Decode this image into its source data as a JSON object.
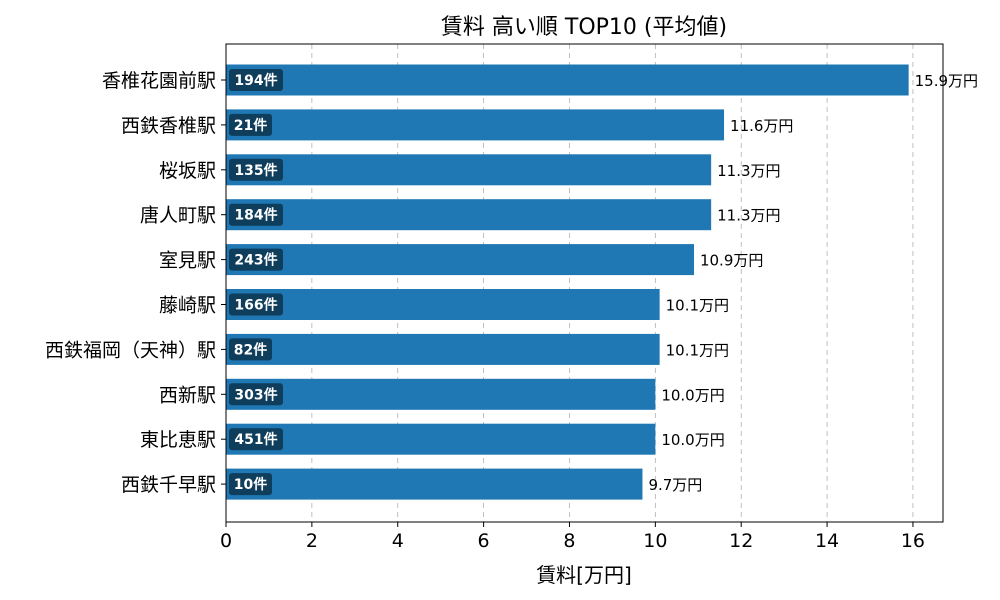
{
  "chart_data": {
    "type": "bar",
    "orientation": "horizontal",
    "title": "賃料 高い順 TOP10 (平均値)",
    "xlabel": "賃料[万円]",
    "ylabel": "",
    "xlim": [
      0,
      16.7
    ],
    "xticks": [
      "0",
      "2",
      "4",
      "6",
      "8",
      "10",
      "12",
      "14",
      "16"
    ],
    "grid": "x-dashed",
    "bar_color": "#1f77b4",
    "badge_color": "#0f3d5c",
    "categories": [
      "香椎花園前駅",
      "西鉄香椎駅",
      "桜坂駅",
      "唐人町駅",
      "室見駅",
      "藤崎駅",
      "西鉄福岡（天神）駅",
      "西新駅",
      "東比恵駅",
      "西鉄千早駅"
    ],
    "values": [
      15.9,
      11.6,
      11.3,
      11.3,
      10.9,
      10.1,
      10.1,
      10.0,
      10.0,
      9.7
    ],
    "value_labels": [
      "15.9万円",
      "11.6万円",
      "11.3万円",
      "11.3万円",
      "10.9万円",
      "10.1万円",
      "10.1万円",
      "10.0万円",
      "10.0万円",
      "9.7万円"
    ],
    "counts": [
      "194件",
      "21件",
      "135件",
      "184件",
      "243件",
      "166件",
      "82件",
      "303件",
      "451件",
      "10件"
    ]
  }
}
